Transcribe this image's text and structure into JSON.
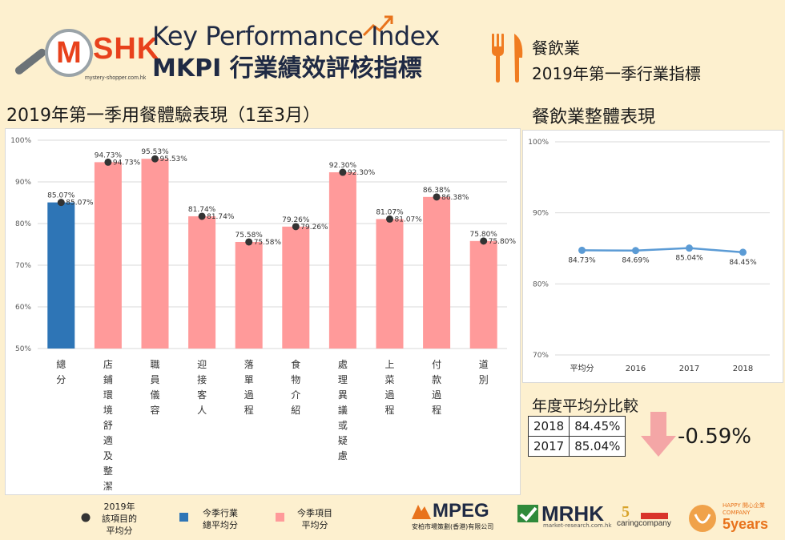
{
  "header": {
    "title_en": "Key Performance Index",
    "title_zh": "MKPI 行業績效評核指標",
    "logo": {
      "letter": "M",
      "text": "SHK",
      "url": "mystery-shopper.com.hk"
    },
    "industry": "餐飲業",
    "industry_period": "2019年第一季行業指標"
  },
  "left_section": {
    "title": "2019年第一季用餐體驗表現（1至3月）"
  },
  "right_section": {
    "title": "餐飲業整體表現"
  },
  "compare": {
    "title": "年度平均分比較",
    "rows": [
      {
        "year": "2018",
        "score": "84.45%"
      },
      {
        "year": "2017",
        "score": "85.04%"
      }
    ],
    "diff": "-0.59%",
    "diff_color": "#f4a6a6"
  },
  "legend": {
    "dot": "2019年\n該項目的\n平均分",
    "blue": "今季行業\n總平均分",
    "pink": "今季項目\n平均分"
  },
  "footer_logos": {
    "mpeg": "MPEG",
    "mpeg_sub": "安柏市場策劃(香港)有限公司",
    "mrhk": "MRHK",
    "mrhk_sub": "market-research.com.hk",
    "caring": "caringcompany",
    "happy": "5years",
    "happy_sub": "HAPPY 開心企業 COMPANY"
  },
  "colors": {
    "blue": "#2e75b6",
    "pink": "#ff9a9a",
    "dot": "#333333",
    "line": "#5b9bd5",
    "accent": "#e8411c"
  },
  "chart_data": [
    {
      "type": "bar",
      "yticks": [
        "100%",
        "90%",
        "80%",
        "70%",
        "60%",
        "50%"
      ],
      "ylim": [
        50,
        100
      ],
      "categories": [
        "總分",
        "店鋪環境舒適及整潔",
        "職員儀容",
        "迎接客人",
        "落單過程",
        "食物介紹",
        "處理異議或疑慮",
        "上菜過程",
        "付款過程",
        "道別"
      ],
      "values": [
        85.07,
        94.73,
        95.53,
        81.74,
        75.58,
        79.26,
        92.3,
        81.07,
        86.38,
        75.8
      ],
      "labels": [
        "85.07%",
        "94.73%",
        "95.53%",
        "81.74%",
        "75.58%",
        "79.26%",
        "92.30%",
        "81.07%",
        "86.38%",
        "75.80%"
      ],
      "bar_colors": [
        "blue",
        "pink",
        "pink",
        "pink",
        "pink",
        "pink",
        "pink",
        "pink",
        "pink",
        "pink"
      ],
      "grid": true
    },
    {
      "type": "line",
      "yticks": [
        "100%",
        "90%",
        "80%",
        "70%"
      ],
      "ylim": [
        70,
        100
      ],
      "categories": [
        "平均分",
        "2016",
        "2017",
        "2018"
      ],
      "values": [
        84.73,
        84.69,
        85.04,
        84.45
      ],
      "labels": [
        "84.73%",
        "84.69%",
        "85.04%",
        "84.45%"
      ],
      "grid": true
    }
  ]
}
